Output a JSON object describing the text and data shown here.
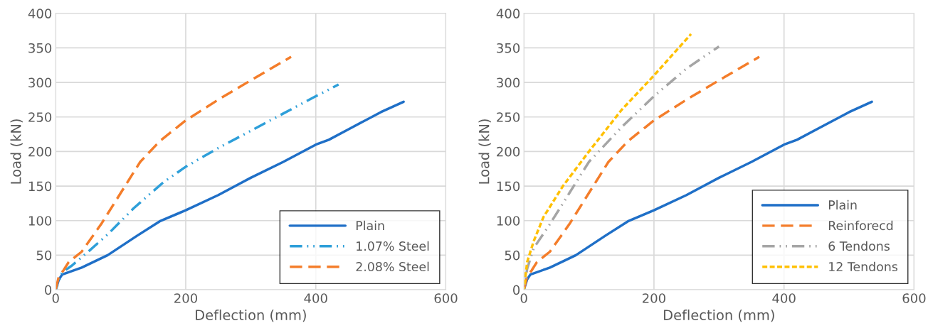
{
  "chart_data": [
    {
      "type": "line",
      "xlabel": "Deflection (mm)",
      "ylabel": "Load (kN)",
      "xlim": [
        0,
        600
      ],
      "ylim": [
        0,
        400
      ],
      "xticks": [
        0,
        200,
        400,
        600
      ],
      "yticks": [
        0,
        50,
        100,
        150,
        200,
        250,
        300,
        350,
        400
      ],
      "grid": true,
      "legend": "bottom right",
      "series": [
        {
          "name": "Plain",
          "color": "#1f6fc7",
          "line_style": "solid",
          "x": [
            0,
            5,
            10,
            40,
            80,
            125,
            160,
            200,
            250,
            300,
            350,
            400,
            420,
            450,
            500,
            535
          ],
          "values": [
            0,
            15,
            22,
            32,
            50,
            78,
            99,
            115,
            137,
            162,
            185,
            210,
            217,
            232,
            257,
            272
          ]
        },
        {
          "name": "1.07% Steel",
          "color": "#2e9fd9",
          "line_style": "dashdot",
          "x": [
            0,
            10,
            25,
            50,
            80,
            120,
            165,
            200,
            250,
            300,
            350,
            400,
            435
          ],
          "values": [
            0,
            25,
            35,
            55,
            80,
            118,
            155,
            178,
            205,
            230,
            255,
            280,
            297
          ]
        },
        {
          "name": "2.08% Steel",
          "color": "#f47d2a",
          "line_style": "dashed",
          "x": [
            0,
            5,
            12,
            20,
            40,
            70,
            100,
            130,
            160,
            200,
            250,
            300,
            362
          ],
          "values": [
            0,
            20,
            28,
            40,
            55,
            95,
            140,
            185,
            215,
            245,
            275,
            303,
            337
          ]
        }
      ]
    },
    {
      "type": "line",
      "xlabel": "Deflection (mm)",
      "ylabel": "Load (kN)",
      "xlim": [
        0,
        600
      ],
      "ylim": [
        0,
        400
      ],
      "xticks": [
        0,
        200,
        400,
        600
      ],
      "yticks": [
        0,
        50,
        100,
        150,
        200,
        250,
        300,
        350,
        400
      ],
      "grid": true,
      "legend": "bottom right",
      "series": [
        {
          "name": "Plain",
          "color": "#1f6fc7",
          "line_style": "solid",
          "x": [
            0,
            5,
            10,
            40,
            80,
            125,
            160,
            200,
            250,
            300,
            350,
            400,
            420,
            450,
            500,
            535
          ],
          "values": [
            0,
            15,
            22,
            32,
            50,
            78,
            99,
            115,
            137,
            162,
            185,
            210,
            217,
            232,
            257,
            272
          ]
        },
        {
          "name": "Reinforecd",
          "color": "#f47d2a",
          "line_style": "dashed",
          "x": [
            0,
            5,
            12,
            20,
            40,
            70,
            100,
            130,
            160,
            200,
            250,
            300,
            362
          ],
          "values": [
            0,
            20,
            28,
            40,
            55,
            95,
            140,
            185,
            215,
            245,
            275,
            303,
            337
          ]
        },
        {
          "name": "6 Tendons",
          "color": "#a5a5a5",
          "line_style": "dashdot",
          "x": [
            0,
            5,
            15,
            40,
            70,
            100,
            150,
            200,
            250,
            300
          ],
          "values": [
            0,
            30,
            60,
            95,
            140,
            185,
            235,
            280,
            320,
            352
          ]
        },
        {
          "name": "12 Tendons",
          "color": "#ffc000",
          "line_style": "dotted",
          "x": [
            0,
            5,
            15,
            30,
            60,
            100,
            150,
            200,
            257
          ],
          "values": [
            0,
            40,
            70,
            105,
            150,
            200,
            260,
            310,
            370
          ]
        }
      ]
    }
  ]
}
